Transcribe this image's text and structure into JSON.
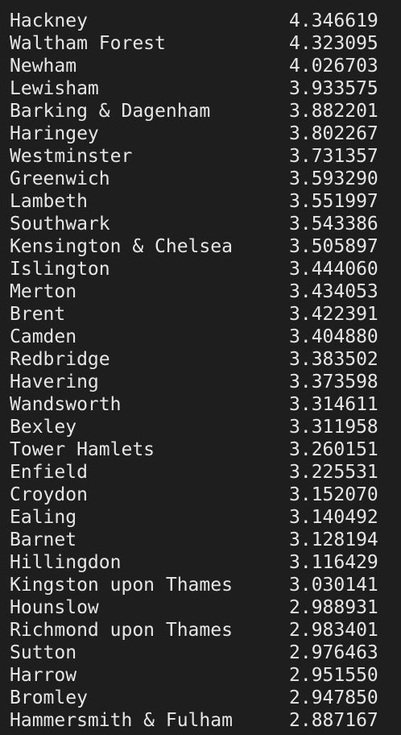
{
  "output": {
    "rows": [
      {
        "name": "Hackney",
        "value": "4.346619"
      },
      {
        "name": "Waltham Forest",
        "value": "4.323095"
      },
      {
        "name": "Newham",
        "value": "4.026703"
      },
      {
        "name": "Lewisham",
        "value": "3.933575"
      },
      {
        "name": "Barking & Dagenham",
        "value": "3.882201"
      },
      {
        "name": "Haringey",
        "value": "3.802267"
      },
      {
        "name": "Westminster",
        "value": "3.731357"
      },
      {
        "name": "Greenwich",
        "value": "3.593290"
      },
      {
        "name": "Lambeth",
        "value": "3.551997"
      },
      {
        "name": "Southwark",
        "value": "3.543386"
      },
      {
        "name": "Kensington & Chelsea",
        "value": "3.505897"
      },
      {
        "name": "Islington",
        "value": "3.444060"
      },
      {
        "name": "Merton",
        "value": "3.434053"
      },
      {
        "name": "Brent",
        "value": "3.422391"
      },
      {
        "name": "Camden",
        "value": "3.404880"
      },
      {
        "name": "Redbridge",
        "value": "3.383502"
      },
      {
        "name": "Havering",
        "value": "3.373598"
      },
      {
        "name": "Wandsworth",
        "value": "3.314611"
      },
      {
        "name": "Bexley",
        "value": "3.311958"
      },
      {
        "name": "Tower Hamlets",
        "value": "3.260151"
      },
      {
        "name": "Enfield",
        "value": "3.225531"
      },
      {
        "name": "Croydon",
        "value": "3.152070"
      },
      {
        "name": "Ealing",
        "value": "3.140492"
      },
      {
        "name": "Barnet",
        "value": "3.128194"
      },
      {
        "name": "Hillingdon",
        "value": "3.116429"
      },
      {
        "name": "Kingston upon Thames",
        "value": "3.030141"
      },
      {
        "name": "Hounslow",
        "value": "2.988931"
      },
      {
        "name": "Richmond upon Thames",
        "value": "2.983401"
      },
      {
        "name": "Sutton",
        "value": "2.976463"
      },
      {
        "name": "Harrow",
        "value": "2.951550"
      },
      {
        "name": "Bromley",
        "value": "2.947850"
      },
      {
        "name": "Hammersmith & Fulham",
        "value": "2.887167"
      }
    ]
  },
  "colors": {
    "background": "#1e1e1e",
    "text": "#e6e6e6"
  }
}
